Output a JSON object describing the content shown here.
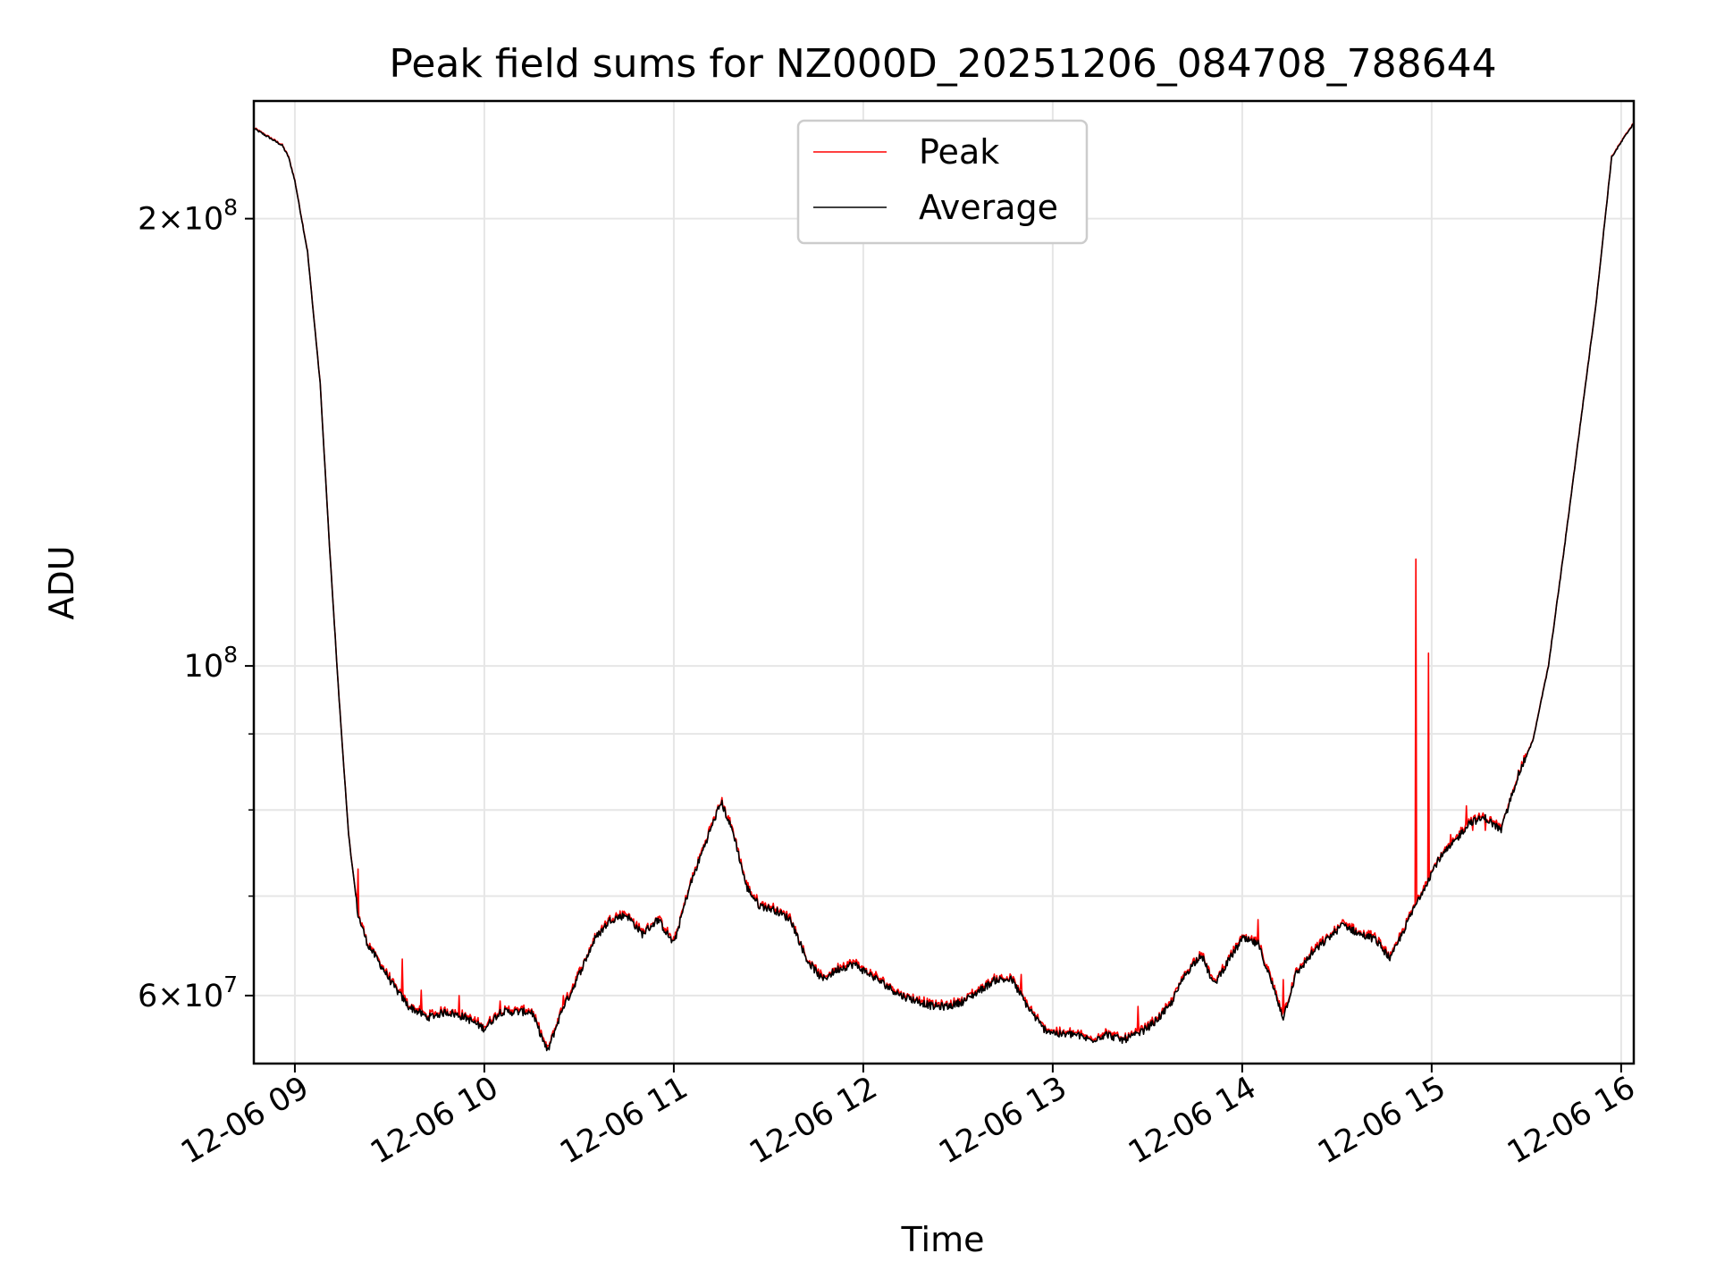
{
  "chart_data": {
    "type": "line",
    "title": "Peak field sums for NZ000D_20251206_084708_788644",
    "xlabel": "Time",
    "ylabel": "ADU",
    "y_scale": "log",
    "x_range": [
      "2025-12-06 08:47",
      "2025-12-06 16:04"
    ],
    "ylim": [
      54000000,
      240000000
    ],
    "grid": true,
    "legend_position": "top-center",
    "x_ticks": [
      {
        "t": "09:00",
        "label": "12-06 09"
      },
      {
        "t": "10:00",
        "label": "12-06 10"
      },
      {
        "t": "11:00",
        "label": "12-06 11"
      },
      {
        "t": "12:00",
        "label": "12-06 12"
      },
      {
        "t": "13:00",
        "label": "12-06 13"
      },
      {
        "t": "14:00",
        "label": "12-06 14"
      },
      {
        "t": "15:00",
        "label": "12-06 15"
      },
      {
        "t": "16:00",
        "label": "12-06 16"
      }
    ],
    "y_major_ticks": [
      {
        "value": 60000000,
        "base": "6×10",
        "exp": "7"
      },
      {
        "value": 100000000,
        "base": "10",
        "exp": "8"
      },
      {
        "value": 200000000,
        "base": "2×10",
        "exp": "8"
      }
    ],
    "y_minor_ticks": [
      70000000,
      80000000,
      90000000
    ],
    "series": [
      {
        "name": "Average",
        "color": "#000000",
        "x": [
          "08:47",
          "08:53",
          "08:56",
          "08:58",
          "09:00",
          "09:04",
          "09:08",
          "09:11",
          "09:14",
          "09:17",
          "09:20",
          "09:23",
          "09:27",
          "09:31",
          "09:36",
          "09:42",
          "09:48",
          "09:54",
          "10:00",
          "10:05",
          "10:10",
          "10:15",
          "10:20",
          "10:25",
          "10:27",
          "10:30",
          "10:35",
          "10:40",
          "10:45",
          "10:50",
          "10:55",
          "11:00",
          "11:05",
          "11:10",
          "11:15",
          "11:19",
          "11:23",
          "11:27",
          "11:32",
          "11:37",
          "11:42",
          "11:47",
          "11:52",
          "11:57",
          "12:02",
          "12:07",
          "12:12",
          "12:17",
          "12:22",
          "12:27",
          "12:32",
          "12:37",
          "12:42",
          "12:47",
          "12:52",
          "12:57",
          "13:02",
          "13:07",
          "13:12",
          "13:17",
          "13:22",
          "13:27",
          "13:32",
          "13:37",
          "13:42",
          "13:47",
          "13:51",
          "13:55",
          "14:00",
          "14:05",
          "14:09",
          "14:13",
          "14:17",
          "14:22",
          "14:27",
          "14:32",
          "14:37",
          "14:42",
          "14:47",
          "14:52",
          "14:57",
          "15:02",
          "15:07",
          "15:12",
          "15:17",
          "15:22",
          "15:27",
          "15:32",
          "15:37",
          "15:42",
          "15:47",
          "15:52",
          "15:57",
          "16:04"
        ],
        "y": [
          230000000,
          226000000,
          224000000,
          220000000,
          212000000,
          190000000,
          155000000,
          120000000,
          95000000,
          77000000,
          68000000,
          65000000,
          63000000,
          61000000,
          59000000,
          58000000,
          58500000,
          58000000,
          57000000,
          58500000,
          58500000,
          58500000,
          55000000,
          59000000,
          60000000,
          62000000,
          65500000,
          67500000,
          68000000,
          66000000,
          67500000,
          65000000,
          71000000,
          76000000,
          81000000,
          77000000,
          71000000,
          69000000,
          68500000,
          67500000,
          63500000,
          61500000,
          62500000,
          63000000,
          62000000,
          61000000,
          60000000,
          59500000,
          59000000,
          59000000,
          59500000,
          60500000,
          61500000,
          61500000,
          59000000,
          57000000,
          56500000,
          56500000,
          56000000,
          56500000,
          56000000,
          56500000,
          57500000,
          59000000,
          62000000,
          64000000,
          61000000,
          63000000,
          65500000,
          65000000,
          61500000,
          58000000,
          62000000,
          64000000,
          65500000,
          67000000,
          66000000,
          65500000,
          63500000,
          67000000,
          70500000,
          74000000,
          76000000,
          78500000,
          79000000,
          77500000,
          84000000,
          89000000,
          100000000,
          120000000,
          145000000,
          175000000,
          220000000,
          232000000
        ]
      },
      {
        "name": "Peak",
        "color": "#ff0000",
        "note": "follows Average closely with isolated spikes",
        "spikes": [
          {
            "x": "09:20",
            "y": 73000000
          },
          {
            "x": "09:34",
            "y": 63500000
          },
          {
            "x": "09:40",
            "y": 60500000
          },
          {
            "x": "09:52",
            "y": 60000000
          },
          {
            "x": "10:05",
            "y": 59500000
          },
          {
            "x": "10:25",
            "y": 60000000
          },
          {
            "x": "12:50",
            "y": 62000000
          },
          {
            "x": "13:27",
            "y": 59000000
          },
          {
            "x": "13:30",
            "y": 57500000
          },
          {
            "x": "14:05",
            "y": 67500000
          },
          {
            "x": "14:13",
            "y": 61500000
          },
          {
            "x": "14:55",
            "y": 118000000
          },
          {
            "x": "14:59",
            "y": 102000000
          },
          {
            "x": "15:06",
            "y": 77000000
          },
          {
            "x": "15:08",
            "y": 77000000
          },
          {
            "x": "15:11",
            "y": 80500000
          },
          {
            "x": "15:13",
            "y": 77500000
          },
          {
            "x": "15:17",
            "y": 77500000
          }
        ]
      }
    ]
  }
}
